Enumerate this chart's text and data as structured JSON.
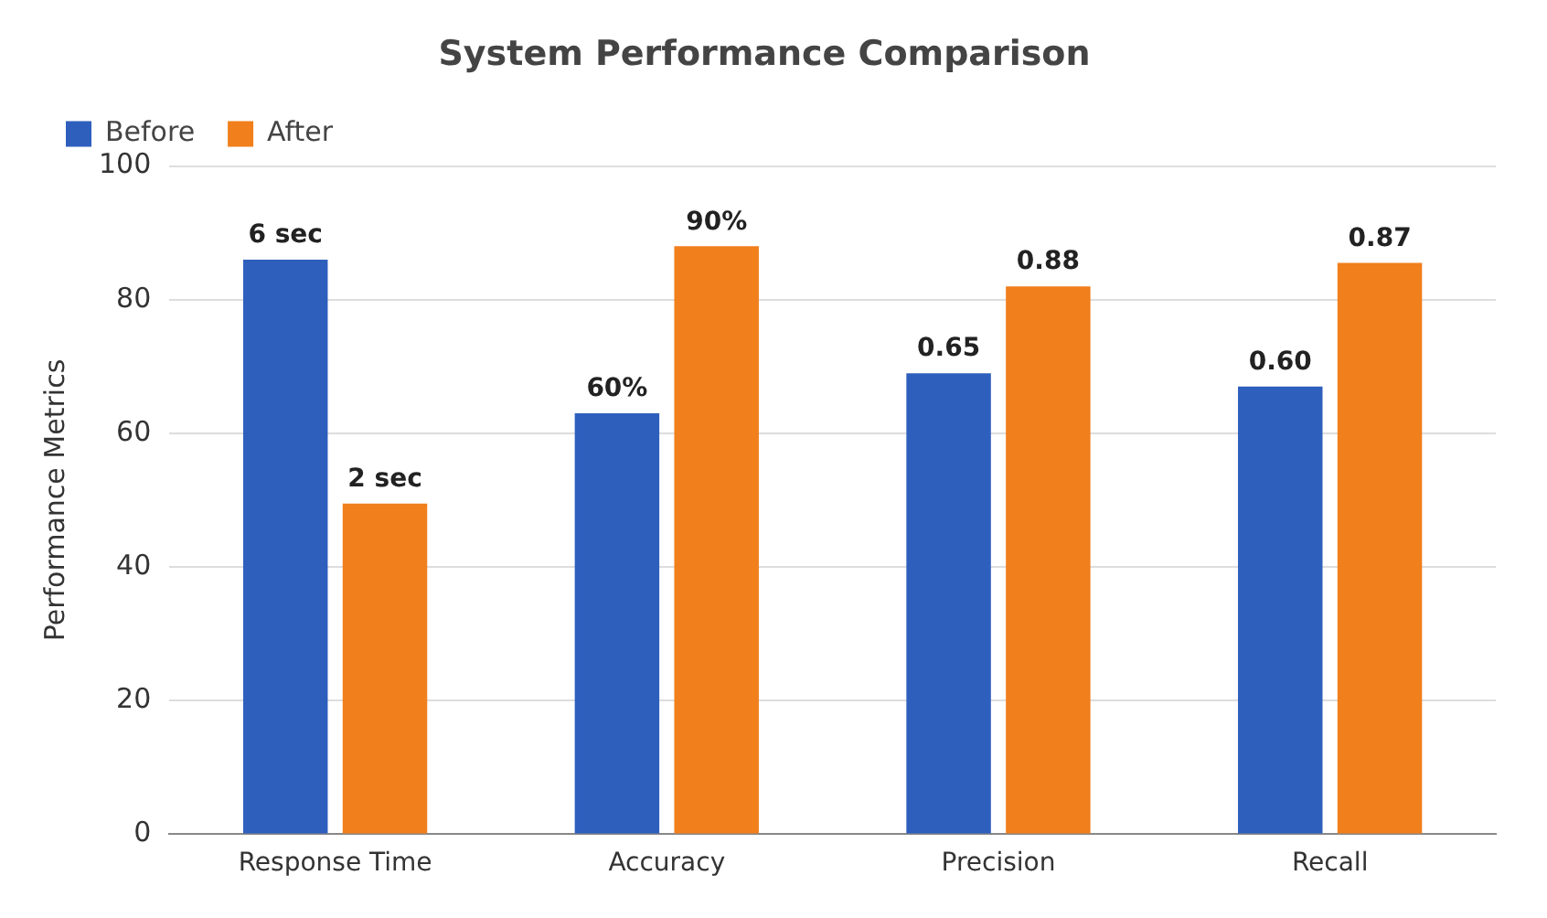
{
  "chart_data": {
    "type": "bar",
    "title": "System Performance Comparison",
    "ylabel": "Performance Metrics",
    "categories": [
      "Response Time",
      "Accuracy",
      "Precision",
      "Recall"
    ],
    "series": [
      {
        "name": "Before",
        "color": "#2e5fbd",
        "values": [
          86,
          63,
          69,
          67
        ]
      },
      {
        "name": "After",
        "color": "#f07f1c",
        "values": [
          49.5,
          88,
          82,
          85.5
        ]
      }
    ],
    "annotations": [
      {
        "text": "6 sec",
        "x": "Response Time",
        "y": 86
      },
      {
        "text": "2 sec",
        "x": "Response Time",
        "y": 49.5
      },
      {
        "text": "60%",
        "x": "Accuracy",
        "y": 63
      },
      {
        "text": "90%",
        "x": "Accuracy",
        "y": 88
      },
      {
        "text": "0.65",
        "x": "Precision",
        "y": 69
      },
      {
        "text": "0.88",
        "x": "Precision",
        "y": 82
      },
      {
        "text": "0.60",
        "x": "Recall",
        "y": 67
      },
      {
        "text": "0.87",
        "x": "Recall",
        "y": 85.5
      }
    ],
    "ylim": [
      0,
      100
    ],
    "yticks": [
      0,
      20,
      40,
      60,
      80,
      100
    ],
    "grid": "y",
    "legend": "top left"
  }
}
